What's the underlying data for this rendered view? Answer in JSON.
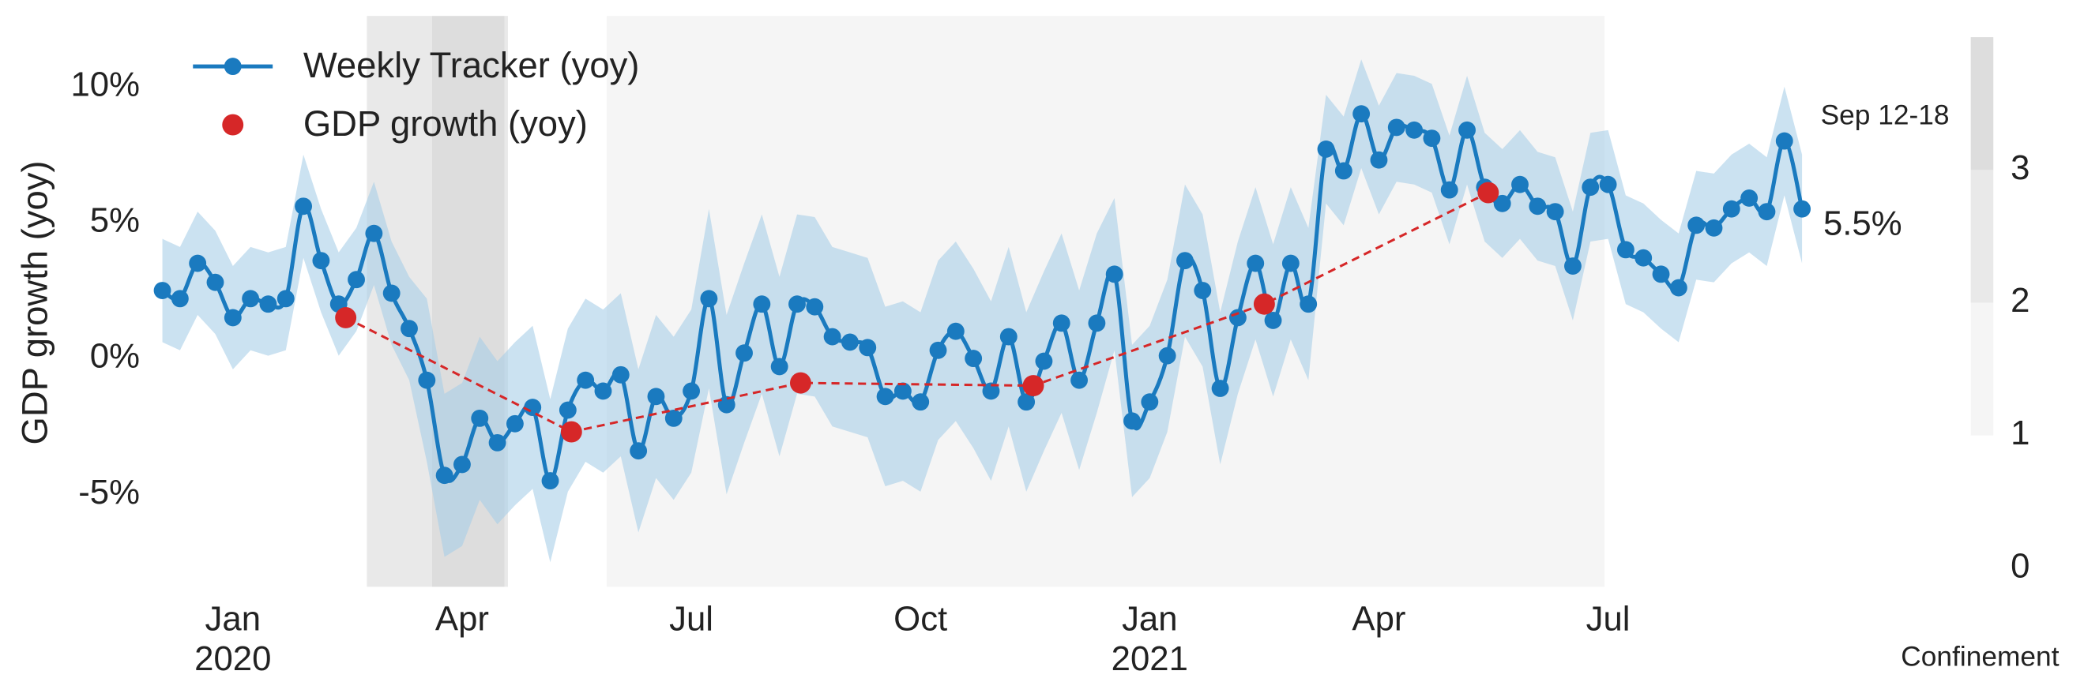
{
  "chart_data": {
    "type": "line",
    "ylabel": "GDP growth (yoy)",
    "xlim": [
      -0.3,
      93.3
    ],
    "ylim": [
      -8.4,
      12.6
    ],
    "yticks": [
      {
        "value": -5,
        "label": "-5%"
      },
      {
        "value": 0,
        "label": "0%"
      },
      {
        "value": 5,
        "label": "5%"
      },
      {
        "value": 10,
        "label": "10%"
      }
    ],
    "xticks": [
      {
        "value": 4,
        "label": "Jan"
      },
      {
        "value": 17,
        "label": "Apr"
      },
      {
        "value": 30,
        "label": "Jul"
      },
      {
        "value": 43,
        "label": "Oct"
      },
      {
        "value": 56,
        "label": "Jan"
      },
      {
        "value": 69,
        "label": "Apr"
      },
      {
        "value": 82,
        "label": "Jul"
      }
    ],
    "x_year_labels": [
      {
        "value": 4,
        "label": "2020"
      },
      {
        "value": 56,
        "label": "2021"
      }
    ],
    "legend": "upper left",
    "series": [
      {
        "name": "Weekly Tracker (yoy)",
        "color": "#1a7abf",
        "band_color": "#a9cfe8",
        "x": [
          0,
          1,
          2,
          3,
          4,
          5,
          6,
          7,
          8,
          9,
          10,
          11,
          12,
          13,
          14,
          15,
          16,
          17,
          18,
          19,
          20,
          21,
          22,
          23,
          24,
          25,
          26,
          27,
          28,
          29,
          30,
          31,
          32,
          33,
          34,
          35,
          36,
          37,
          38,
          39,
          40,
          41,
          42,
          43,
          44,
          45,
          46,
          47,
          48,
          49,
          50,
          51,
          52,
          53,
          54,
          55,
          56,
          57,
          58,
          59,
          60,
          61,
          62,
          63,
          64,
          65,
          66,
          67,
          68,
          69,
          70,
          71,
          72,
          73,
          74,
          75,
          76,
          77,
          78,
          79,
          80,
          81,
          82,
          83,
          84,
          85,
          86,
          87,
          88,
          89,
          90,
          91,
          92,
          93
        ],
        "values": [
          2.5,
          2.2,
          3.5,
          2.8,
          1.5,
          2.2,
          2.0,
          2.2,
          5.6,
          3.6,
          2.0,
          2.9,
          4.6,
          2.4,
          1.1,
          -0.8,
          -4.3,
          -3.9,
          -2.2,
          -3.1,
          -2.4,
          -1.8,
          -4.5,
          -1.9,
          -0.8,
          -1.2,
          -0.6,
          -3.4,
          -1.4,
          -2.2,
          -1.2,
          2.2,
          -1.7,
          0.2,
          2.0,
          -0.3,
          2.0,
          1.9,
          0.8,
          0.6,
          0.4,
          -1.4,
          -1.2,
          -1.6,
          0.3,
          1.0,
          0.0,
          -1.2,
          0.8,
          -1.6,
          -0.1,
          1.3,
          -0.8,
          1.3,
          3.1,
          -2.3,
          -1.6,
          0.1,
          3.6,
          2.5,
          -1.1,
          1.5,
          3.5,
          1.4,
          3.5,
          2.0,
          7.7,
          6.9,
          9.0,
          7.3,
          8.5,
          8.4,
          8.1,
          6.2,
          8.4,
          6.3,
          5.7,
          6.4,
          5.6,
          5.4,
          3.4,
          6.3,
          6.4,
          4.0,
          3.7,
          3.1,
          2.6,
          4.9,
          4.8,
          5.5,
          5.9,
          5.4,
          8.0,
          5.5
        ],
        "band_upper": [
          4.4,
          4.1,
          5.4,
          4.7,
          3.4,
          4.1,
          3.9,
          4.1,
          7.5,
          5.5,
          3.9,
          4.8,
          6.5,
          4.3,
          3.0,
          2.2,
          -1.3,
          -0.9,
          0.8,
          -0.1,
          0.6,
          1.2,
          -1.5,
          1.1,
          2.2,
          1.8,
          2.4,
          -0.4,
          1.6,
          0.8,
          1.8,
          5.5,
          1.6,
          3.5,
          5.3,
          3.0,
          5.3,
          5.2,
          4.1,
          3.9,
          3.7,
          1.9,
          2.1,
          1.7,
          3.6,
          4.3,
          3.3,
          2.1,
          4.1,
          1.7,
          3.2,
          4.6,
          2.5,
          4.6,
          5.9,
          0.5,
          1.2,
          2.9,
          6.4,
          5.3,
          1.7,
          4.3,
          6.3,
          4.2,
          6.3,
          4.8,
          9.7,
          8.9,
          11.0,
          9.3,
          10.5,
          10.4,
          10.1,
          8.2,
          10.4,
          8.3,
          7.7,
          8.4,
          7.6,
          7.4,
          5.4,
          8.3,
          8.4,
          6.0,
          5.7,
          5.1,
          4.6,
          6.9,
          6.8,
          7.5,
          7.9,
          7.4,
          10.0,
          7.5
        ],
        "band_lower": [
          0.6,
          0.3,
          1.6,
          0.9,
          -0.4,
          0.3,
          0.1,
          0.3,
          3.7,
          1.7,
          0.1,
          1.0,
          2.7,
          0.5,
          -0.8,
          -3.8,
          -7.3,
          -6.9,
          -5.2,
          -6.1,
          -5.4,
          -4.8,
          -7.5,
          -4.9,
          -3.8,
          -4.2,
          -3.6,
          -6.4,
          -4.4,
          -5.2,
          -4.2,
          -1.1,
          -5.0,
          -3.1,
          -1.3,
          -3.6,
          -1.3,
          -1.4,
          -2.5,
          -2.7,
          -2.9,
          -4.7,
          -4.5,
          -4.9,
          -3.0,
          -2.3,
          -3.3,
          -4.5,
          -2.5,
          -4.9,
          -3.4,
          -2.0,
          -4.1,
          -2.0,
          0.3,
          -5.1,
          -4.4,
          -2.7,
          0.8,
          -0.3,
          -3.9,
          -1.3,
          0.7,
          -1.4,
          0.7,
          -0.8,
          5.7,
          4.9,
          7.0,
          5.3,
          6.5,
          6.4,
          6.1,
          4.2,
          6.4,
          4.3,
          3.7,
          4.4,
          3.6,
          3.4,
          1.4,
          4.3,
          4.4,
          2.0,
          1.7,
          1.1,
          0.6,
          2.9,
          2.8,
          3.5,
          3.9,
          3.4,
          6.0,
          3.5
        ]
      },
      {
        "name": "GDP growth (yoy)",
        "color": "#d62728",
        "x": [
          10.4,
          23.2,
          36.2,
          49.4,
          62.5,
          75.2
        ],
        "values": [
          1.5,
          -2.7,
          -0.9,
          -1.0,
          2.0,
          6.1
        ]
      }
    ],
    "annotations": [
      {
        "text": "Sep 12-18"
      },
      {
        "text": "5.5%"
      }
    ],
    "regions": [
      {
        "start": 11.6,
        "end": 15.3,
        "level": 2
      },
      {
        "start": 15.3,
        "end": 19.4,
        "level": 3
      },
      {
        "start": 19.4,
        "end": 19.6,
        "level": 2
      },
      {
        "start": 25.2,
        "end": 81.8,
        "level": 1
      }
    ],
    "colorbar": {
      "label": "Confinement",
      "lim": [
        0,
        4
      ],
      "ticks": [
        0,
        1,
        2,
        3
      ],
      "colors": [
        "#ffffff",
        "#f5f5f5",
        "#e9e9e9",
        "#dddddd"
      ]
    }
  }
}
